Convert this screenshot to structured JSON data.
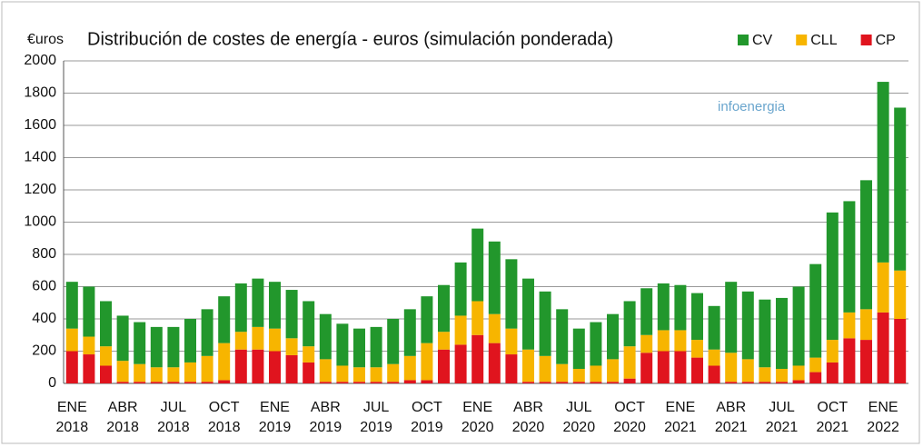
{
  "chart_data": {
    "type": "stacked_bar",
    "title": "Distribución de costes de energía - euros (simulación ponderada)",
    "y_label": "€uros",
    "logo_text": "infoenergia",
    "categories": [
      "ENE 2018",
      null,
      null,
      "ABR 2018",
      null,
      null,
      "JUL 2018",
      null,
      null,
      "OCT 2018",
      null,
      null,
      "ENE 2019",
      null,
      null,
      "ABR 2019",
      null,
      null,
      "JUL 2019",
      null,
      null,
      "OCT 2019",
      null,
      null,
      "ENE 2020",
      null,
      null,
      "ABR 2020",
      null,
      null,
      "JUL 2020",
      null,
      null,
      "OCT 2020",
      null,
      null,
      "ENE 2021",
      null,
      null,
      "ABR 2021",
      null,
      null,
      "JUL 2021",
      null,
      null,
      "OCT 2021",
      null,
      null,
      "ENE 2022",
      null
    ],
    "series": [
      {
        "name": "CP",
        "color": "#e0141e",
        "values": [
          200,
          180,
          110,
          10,
          10,
          10,
          10,
          10,
          10,
          20,
          210,
          210,
          200,
          175,
          130,
          10,
          10,
          10,
          10,
          10,
          20,
          20,
          210,
          240,
          300,
          250,
          180,
          10,
          10,
          10,
          10,
          10,
          10,
          30,
          190,
          200,
          200,
          160,
          110,
          10,
          10,
          10,
          10,
          20,
          70,
          130,
          280,
          270,
          440,
          400
        ]
      },
      {
        "name": "CLL",
        "color": "#f7b500",
        "values": [
          140,
          110,
          120,
          130,
          110,
          90,
          90,
          120,
          160,
          230,
          110,
          140,
          140,
          105,
          100,
          140,
          100,
          90,
          90,
          110,
          150,
          230,
          110,
          180,
          210,
          180,
          160,
          200,
          160,
          110,
          80,
          100,
          140,
          200,
          110,
          130,
          130,
          110,
          100,
          180,
          140,
          90,
          80,
          90,
          90,
          140,
          160,
          190,
          310,
          300
        ]
      },
      {
        "name": "CV",
        "color": "#22972c",
        "values": [
          290,
          310,
          280,
          280,
          260,
          250,
          250,
          270,
          290,
          290,
          300,
          300,
          290,
          300,
          280,
          280,
          260,
          240,
          250,
          280,
          290,
          290,
          290,
          330,
          450,
          450,
          430,
          440,
          400,
          340,
          250,
          270,
          280,
          280,
          290,
          290,
          280,
          290,
          270,
          440,
          420,
          420,
          440,
          490,
          580,
          790,
          690,
          800,
          1120,
          1010
        ]
      }
    ],
    "ylim": [
      0,
      2000
    ],
    "yticks": [
      0,
      200,
      400,
      600,
      800,
      1000,
      1200,
      1400,
      1600,
      1800,
      2000
    ],
    "grid": true,
    "legend": "top-right"
  }
}
